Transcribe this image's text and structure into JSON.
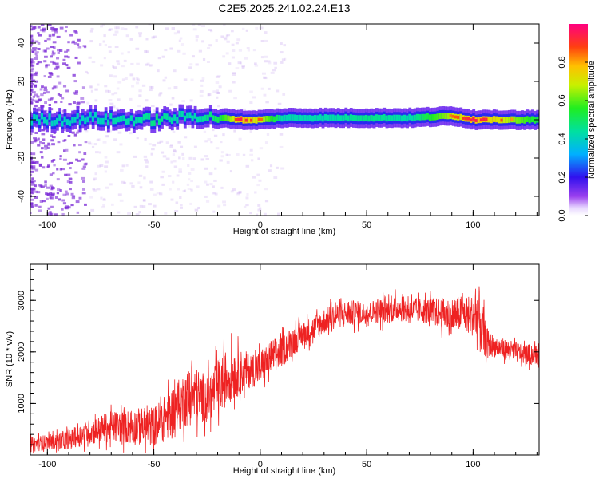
{
  "title": "C2E5.2025.241.02.24.E13",
  "colors": {
    "snr_line": "#ee2222",
    "ridge_core": "#33dd66",
    "ridge_edge": "#1010ee",
    "scatter": "#7a28d6",
    "peak": "#ee2222"
  },
  "chart_data": [
    {
      "type": "heatmap",
      "xlabel": "Height of straight line (km)",
      "ylabel": "Frequency (Hz)",
      "xlim": [
        -108,
        131
      ],
      "ylim": [
        -50,
        50
      ],
      "x_ticks": [
        -100,
        -50,
        0,
        50,
        100
      ],
      "y_ticks": [
        -40,
        -20,
        0,
        20,
        40
      ],
      "x_tick_labels": [
        "-100",
        "-50",
        "0",
        "50",
        "100"
      ],
      "y_tick_labels": [
        "-40",
        "-20",
        "0",
        "20",
        "40"
      ],
      "colorbar": {
        "label": "Normalized spectral amplitude",
        "range": [
          0,
          1
        ],
        "ticks": [
          0.0,
          0.2,
          0.4,
          0.6,
          0.8
        ],
        "tick_labels": [
          "0.0",
          "0.2",
          "0.4",
          "0.6",
          "0.8"
        ],
        "colormap": "rainbow (white-violet-blue-cyan-green-yellow-orange-red-magenta)"
      },
      "ridge": {
        "description": "dominant spectral ridge near 0 Hz",
        "x": [
          -108,
          -90,
          -80,
          -70,
          -60,
          -50,
          -40,
          -30,
          -20,
          -10,
          0,
          10,
          30,
          50,
          70,
          90,
          100,
          110,
          131
        ],
        "center_hz": [
          0,
          0,
          1,
          0,
          0,
          0,
          1,
          2,
          1,
          0,
          0,
          1,
          1,
          1,
          1,
          2,
          0,
          0,
          0
        ],
        "amplitude": [
          0.2,
          0.3,
          0.45,
          0.5,
          0.5,
          0.55,
          0.5,
          0.5,
          0.6,
          0.9,
          0.8,
          0.5,
          0.5,
          0.55,
          0.5,
          0.8,
          0.9,
          0.85,
          0.6
        ]
      }
    },
    {
      "type": "line",
      "xlabel": "Height of straight line (km)",
      "ylabel": "SNR (10 * v/v)",
      "xlim": [
        -108,
        131
      ],
      "ylim": [
        0,
        3700
      ],
      "x_ticks": [
        -100,
        -50,
        0,
        50,
        100
      ],
      "y_ticks": [
        1000,
        2000,
        3000
      ],
      "x_tick_labels": [
        "-100",
        "-50",
        "0",
        "50",
        "100"
      ],
      "y_tick_labels": [
        "1000",
        "2000",
        "3000"
      ],
      "series": [
        {
          "x": [
            -108,
            -100,
            -90,
            -80,
            -70,
            -60,
            -50,
            -45,
            -40,
            -35,
            -30,
            -25,
            -20,
            -15,
            -10,
            -5,
            0,
            5,
            10,
            15,
            20,
            25,
            30,
            35,
            40,
            45,
            50,
            55,
            60,
            65,
            70,
            75,
            80,
            85,
            90,
            95,
            100,
            102,
            104,
            106,
            110,
            115,
            120,
            125,
            131
          ],
          "values": [
            200,
            250,
            300,
            450,
            550,
            550,
            550,
            700,
            900,
            1100,
            1150,
            1100,
            1300,
            1550,
            1600,
            1650,
            1700,
            1900,
            2000,
            2200,
            2350,
            2450,
            2600,
            2700,
            2750,
            2750,
            2750,
            2800,
            2800,
            2850,
            2800,
            2800,
            2800,
            2750,
            2700,
            2750,
            2700,
            2700,
            2500,
            2200,
            2100,
            2050,
            2000,
            1950,
            1950
          ],
          "noise": [
            150,
            150,
            180,
            250,
            300,
            350,
            400,
            450,
            500,
            550,
            550,
            450,
            550,
            550,
            450,
            350,
            350,
            350,
            300,
            300,
            250,
            250,
            250,
            250,
            250,
            250,
            200,
            250,
            250,
            250,
            250,
            250,
            250,
            300,
            350,
            350,
            400,
            700,
            600,
            300,
            200,
            200,
            200,
            200,
            200
          ]
        }
      ]
    }
  ]
}
